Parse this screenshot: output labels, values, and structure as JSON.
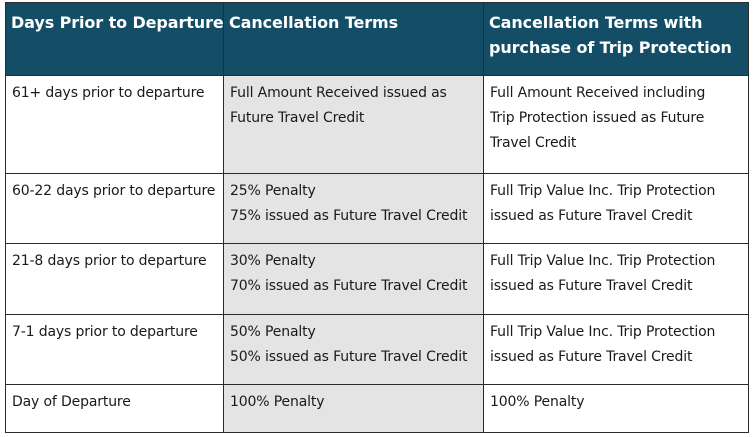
{
  "table": {
    "headers": [
      {
        "lines": [
          "Days Prior to Departure"
        ]
      },
      {
        "lines": [
          "Cancellation Terms"
        ]
      },
      {
        "lines": [
          "Cancellation Terms with",
          "purchase of Trip Protection"
        ]
      }
    ],
    "rows": [
      {
        "days": [
          "61+ days prior to departure"
        ],
        "terms": [
          "Full Amount Received issued as",
          "Future Travel Credit"
        ],
        "protection": [
          "Full Amount Received including",
          "Trip Protection issued as Future",
          "Travel Credit"
        ]
      },
      {
        "days": [
          "60-22 days prior to departure"
        ],
        "terms": [
          "25% Penalty",
          "75% issued as Future Travel Credit"
        ],
        "protection": [
          "Full Trip Value Inc. Trip Protection",
          "issued as Future Travel Credit"
        ]
      },
      {
        "days": [
          "21-8 days prior to departure"
        ],
        "terms": [
          "30% Penalty",
          "70% issued as Future Travel Credit"
        ],
        "protection": [
          "Full Trip Value Inc. Trip Protection",
          "issued as Future Travel Credit"
        ]
      },
      {
        "days": [
          "7-1 days prior to departure"
        ],
        "terms": [
          "50% Penalty",
          "50% issued as Future Travel Credit"
        ],
        "protection": [
          "Full Trip Value Inc. Trip Protection",
          "issued as Future Travel Credit"
        ]
      },
      {
        "days": [
          "Day of Departure"
        ],
        "terms": [
          "100% Penalty"
        ],
        "protection": [
          "100% Penalty"
        ]
      }
    ]
  },
  "colors": {
    "header_background": "#134e66",
    "header_text": "#ffffff",
    "terms_column_background": "#e4e4e4",
    "border": "#2b2b2b"
  }
}
